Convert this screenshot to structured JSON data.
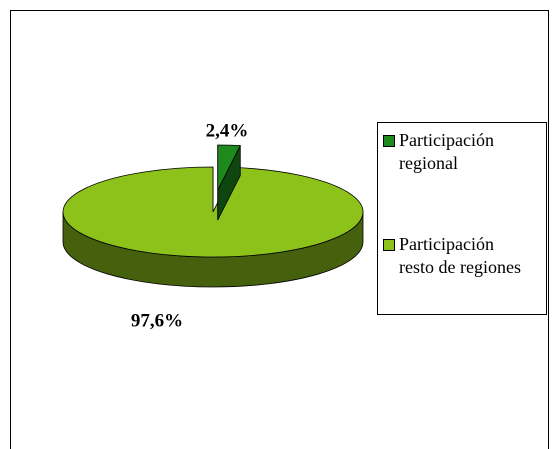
{
  "chart_data": {
    "type": "pie",
    "three_d": true,
    "categories": [
      "Participación regional",
      "Participación resto de regiones"
    ],
    "values": [
      2.4,
      97.6
    ],
    "value_labels": [
      "2,4%",
      "97,6%"
    ],
    "colors": [
      "#1e8a1e",
      "#8cc21a"
    ],
    "legend": "right"
  }
}
